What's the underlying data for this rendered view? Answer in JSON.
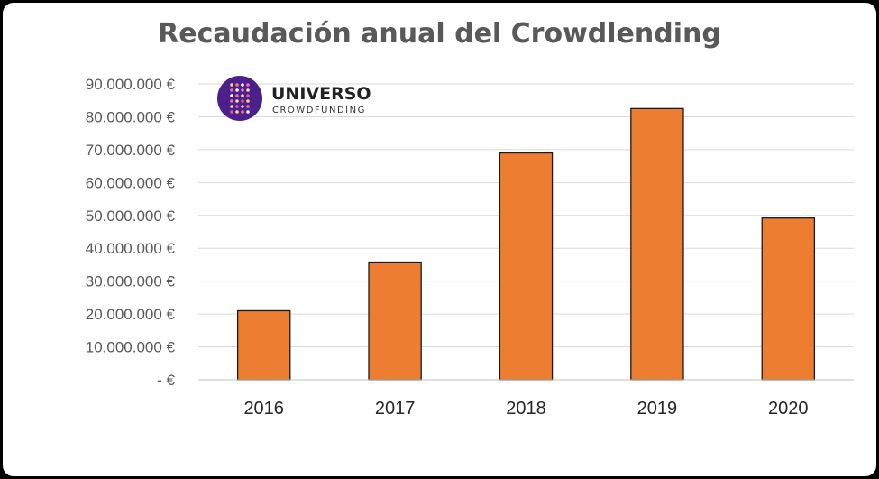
{
  "chart_data": {
    "type": "bar",
    "title": "Recaudación anual del Crowdlending",
    "categories": [
      "2016",
      "2017",
      "2018",
      "2019",
      "2020"
    ],
    "values": [
      21000000,
      35800000,
      69000000,
      82500000,
      49200000
    ],
    "ylim": [
      0,
      90000000
    ],
    "yticks": [
      0,
      10000000,
      20000000,
      30000000,
      40000000,
      50000000,
      60000000,
      70000000,
      80000000,
      90000000
    ],
    "ytick_labels": [
      "-  €",
      "10.000.000 €",
      "20.000.000 €",
      "30.000.000 €",
      "40.000.000 €",
      "50.000.000 €",
      "60.000.000 €",
      "70.000.000 €",
      "80.000.000 €",
      "90.000.000 €"
    ],
    "xlabel": "",
    "ylabel": "",
    "grid": true,
    "bar_color": "#ED7D31",
    "bar_edge_color": "#1a1a1a",
    "grid_color": "#d9d9d9"
  },
  "logo": {
    "name": "UNIVERSO",
    "subtitle": "CROWDFUNDING",
    "circle_color": "#4B1F8C"
  }
}
